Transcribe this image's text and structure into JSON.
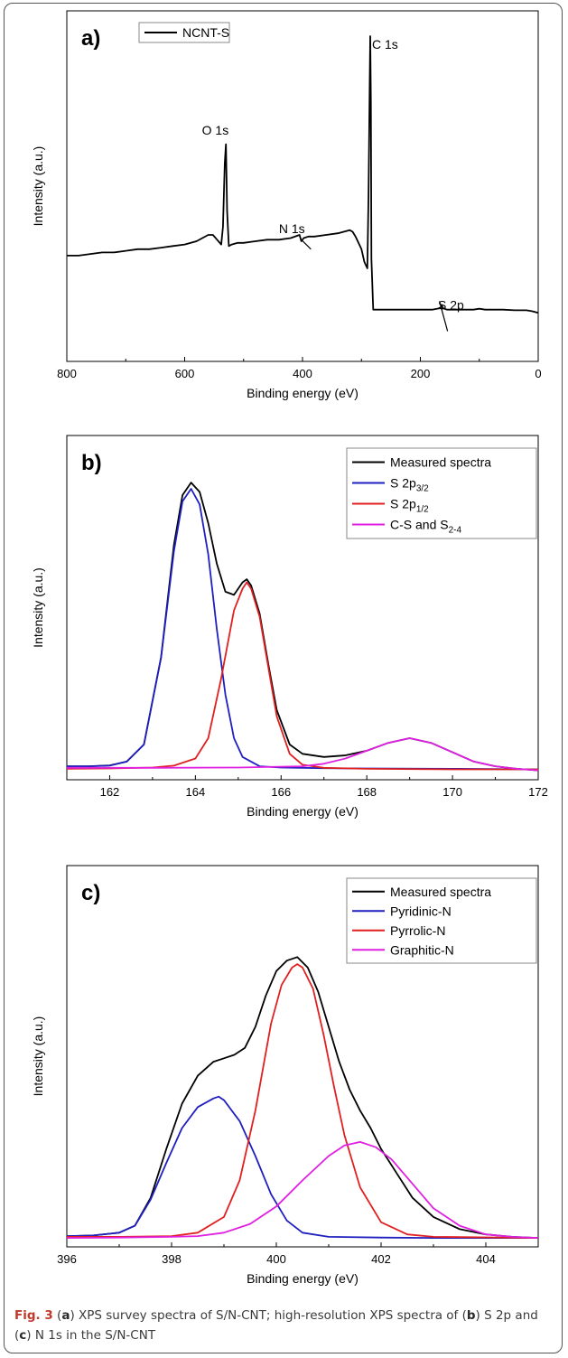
{
  "chart_data": [
    {
      "type": "line",
      "panel_label": "a)",
      "xlabel": "Binding energy (eV)",
      "ylabel": "Intensity (a.u.)",
      "xlim": [
        800,
        0
      ],
      "xticks": [
        800,
        600,
        400,
        200,
        0
      ],
      "ylim": [
        0,
        100
      ],
      "legend": {
        "placement": "top-left",
        "entries": [
          {
            "label": "NCNT-S",
            "color": "#000000"
          }
        ]
      },
      "annotations": [
        {
          "text": "O 1s",
          "x": 548,
          "y": 69
        },
        {
          "text": "N 1s",
          "x": 418,
          "y": 38
        },
        {
          "text": "C 1s",
          "x": 260,
          "y": 96
        },
        {
          "text": "S 2p",
          "x": 148,
          "y": 14
        }
      ],
      "series": [
        {
          "name": "NCNT-S",
          "color": "#000000",
          "x": [
            800,
            780,
            760,
            740,
            720,
            700,
            680,
            660,
            640,
            620,
            600,
            580,
            560,
            552,
            545,
            538,
            535,
            532,
            530,
            528,
            525,
            520,
            510,
            500,
            480,
            460,
            440,
            420,
            405,
            402,
            398,
            390,
            380,
            360,
            340,
            330,
            320,
            315,
            310,
            300,
            295,
            290,
            288,
            286,
            285,
            284,
            283,
            280,
            270,
            250,
            230,
            200,
            180,
            166,
            164,
            162,
            155,
            140,
            120,
            110,
            100,
            90,
            80,
            60,
            40,
            20,
            10,
            0
          ],
          "y": [
            31.0,
            31.0,
            31.5,
            32.0,
            32.0,
            32.5,
            33.0,
            33.0,
            33.5,
            34.0,
            34.5,
            35.5,
            37.5,
            37.5,
            36.0,
            34.5,
            40.0,
            60.0,
            66.0,
            45.0,
            34.0,
            34.5,
            35.0,
            35.0,
            35.5,
            36.0,
            36.0,
            36.5,
            37.5,
            35.5,
            36.5,
            37.0,
            37.0,
            37.5,
            38.0,
            38.5,
            39.0,
            38.5,
            37.0,
            33.0,
            29.0,
            27.0,
            50.0,
            85.0,
            100.0,
            80.0,
            30.0,
            14.0,
            14.0,
            14.0,
            14.0,
            14.0,
            14.0,
            14.5,
            15.5,
            14.5,
            14.0,
            14.0,
            14.0,
            14.0,
            14.3,
            14.0,
            14.0,
            14.0,
            13.8,
            13.8,
            13.5,
            13.0
          ]
        }
      ]
    },
    {
      "type": "line",
      "panel_label": "b)",
      "xlabel": "Binding energy (eV)",
      "ylabel": "Intensity (a.u.)",
      "xlim": [
        161,
        172
      ],
      "xticks": [
        162,
        164,
        166,
        168,
        170,
        172
      ],
      "ylim": [
        0,
        100
      ],
      "legend": {
        "placement": "top-right",
        "entries": [
          {
            "label": "Measured spectra",
            "color": "#000000"
          },
          {
            "label": "S 2p",
            "sub": "3/2",
            "color": "#1f1fbf"
          },
          {
            "label": "S 2p",
            "sub": "1/2",
            "color": "#e02020"
          },
          {
            "label": "C-S and S",
            "sub": "2-4",
            "color": "#e020e0"
          }
        ]
      },
      "series": [
        {
          "name": "Measured spectra",
          "color": "#000000",
          "x": [
            161.0,
            161.5,
            162.0,
            162.4,
            162.8,
            163.2,
            163.5,
            163.7,
            163.9,
            164.1,
            164.3,
            164.5,
            164.7,
            164.9,
            165.1,
            165.2,
            165.3,
            165.5,
            165.7,
            165.9,
            166.2,
            166.5,
            167.0,
            167.5,
            168.0,
            168.5,
            169.0,
            169.5,
            170.0,
            170.5,
            171.0,
            171.5,
            172.0
          ],
          "y": [
            2.0,
            2.0,
            2.3,
            3.5,
            9.0,
            37.0,
            73.0,
            89.0,
            93.0,
            90.0,
            80.0,
            67.0,
            58.0,
            57.0,
            61.0,
            62.0,
            60.0,
            51.0,
            35.0,
            20.0,
            9.0,
            6.0,
            5.0,
            5.5,
            7.0,
            9.5,
            11.0,
            9.5,
            6.5,
            3.5,
            2.0,
            1.2,
            0.7
          ]
        },
        {
          "name": "S 2p3/2",
          "color": "#1f1fbf",
          "x": [
            161.0,
            161.5,
            162.0,
            162.4,
            162.8,
            163.2,
            163.5,
            163.7,
            163.9,
            164.1,
            164.3,
            164.5,
            164.7,
            164.9,
            165.1,
            165.5,
            166.0,
            167.0,
            168.0,
            170.0,
            172.0
          ],
          "y": [
            2.0,
            2.0,
            2.2,
            3.5,
            9.0,
            37.0,
            71.0,
            87.0,
            91.0,
            86.0,
            70.0,
            46.0,
            25.0,
            11.0,
            5.0,
            2.0,
            1.6,
            1.4,
            1.3,
            1.2,
            1.0
          ]
        },
        {
          "name": "S 2p1/2",
          "color": "#e02020",
          "x": [
            161.0,
            162.0,
            163.0,
            163.5,
            164.0,
            164.3,
            164.6,
            164.9,
            165.1,
            165.2,
            165.3,
            165.5,
            165.7,
            165.9,
            166.2,
            166.5,
            167.0,
            168.0,
            170.0,
            172.0
          ],
          "y": [
            1.2,
            1.3,
            1.6,
            2.2,
            4.5,
            11.0,
            30.0,
            52.0,
            59.0,
            61.0,
            59.0,
            50.0,
            34.0,
            18.0,
            6.0,
            2.5,
            1.5,
            1.2,
            1.0,
            1.0
          ]
        },
        {
          "name": "C-S and S2-4",
          "color": "#e020e0",
          "x": [
            161.0,
            163.0,
            165.0,
            166.5,
            167.0,
            167.5,
            168.0,
            168.5,
            169.0,
            169.5,
            170.0,
            170.5,
            171.0,
            171.5,
            172.0
          ],
          "y": [
            1.5,
            1.5,
            1.6,
            2.0,
            2.8,
            4.5,
            7.0,
            9.5,
            11.0,
            9.5,
            6.5,
            3.5,
            2.0,
            1.2,
            0.7
          ]
        }
      ]
    },
    {
      "type": "line",
      "panel_label": "c)",
      "xlabel": "Binding energy (eV)",
      "ylabel": "Intensity (a.u.)",
      "xlim": [
        396,
        405
      ],
      "xticks": [
        396,
        398,
        400,
        402,
        404
      ],
      "ylim": [
        0,
        100
      ],
      "legend": {
        "placement": "top-right",
        "entries": [
          {
            "label": "Measured spectra",
            "color": "#000000"
          },
          {
            "label": "Pyridinic-N",
            "color": "#1f1fbf"
          },
          {
            "label": "Pyrrolic-N",
            "color": "#e02020"
          },
          {
            "label": "Graphitic-N",
            "color": "#e020e0"
          }
        ]
      },
      "series": [
        {
          "name": "Measured spectra",
          "color": "#000000",
          "x": [
            396.0,
            396.5,
            397.0,
            397.3,
            397.6,
            397.9,
            398.2,
            398.5,
            398.8,
            399.0,
            399.2,
            399.4,
            399.6,
            399.8,
            400.0,
            400.2,
            400.4,
            400.6,
            400.8,
            401.0,
            401.2,
            401.4,
            401.6,
            401.8,
            402.0,
            402.3,
            402.6,
            403.0,
            403.5,
            404.0,
            404.5,
            405.0
          ],
          "y": [
            1.0,
            1.2,
            2.0,
            4.0,
            12.0,
            26.0,
            39.0,
            47.0,
            51.0,
            52.0,
            53.0,
            55.0,
            61.0,
            70.0,
            77.0,
            80.0,
            81.0,
            78.0,
            71.0,
            61.0,
            51.0,
            43.0,
            37.0,
            32.0,
            26.0,
            19.0,
            12.0,
            6.5,
            3.0,
            1.5,
            0.8,
            0.5
          ]
        },
        {
          "name": "Pyridinic-N",
          "color": "#1f1fbf",
          "x": [
            396.0,
            396.5,
            397.0,
            397.3,
            397.6,
            397.9,
            398.2,
            398.5,
            398.8,
            398.9,
            399.0,
            399.3,
            399.6,
            399.9,
            400.2,
            400.5,
            401.0,
            402.0,
            403.0,
            405.0
          ],
          "y": [
            1.0,
            1.2,
            2.0,
            4.0,
            11.5,
            22.0,
            32.0,
            38.0,
            40.5,
            41.0,
            40.0,
            34.0,
            24.0,
            13.0,
            5.5,
            2.0,
            0.8,
            0.6,
            0.5,
            0.5
          ]
        },
        {
          "name": "Pyrrolic-N",
          "color": "#e02020",
          "x": [
            396.0,
            397.0,
            398.0,
            398.5,
            399.0,
            399.3,
            399.6,
            399.9,
            400.1,
            400.3,
            400.4,
            400.5,
            400.7,
            400.9,
            401.1,
            401.3,
            401.6,
            402.0,
            402.5,
            403.0,
            405.0
          ],
          "y": [
            0.8,
            0.8,
            1.0,
            2.0,
            6.5,
            17.0,
            37.0,
            62.0,
            73.0,
            78.0,
            79.0,
            78.0,
            72.0,
            59.0,
            44.0,
            30.0,
            15.0,
            5.0,
            1.5,
            0.8,
            0.5
          ]
        },
        {
          "name": "Graphitic-N",
          "color": "#e020e0",
          "x": [
            396.0,
            397.0,
            398.0,
            398.5,
            399.0,
            399.5,
            400.0,
            400.5,
            401.0,
            401.3,
            401.6,
            401.9,
            402.2,
            402.6,
            403.0,
            403.5,
            404.0,
            404.5,
            405.0
          ],
          "y": [
            0.5,
            0.6,
            0.8,
            1.0,
            2.0,
            4.5,
            9.5,
            17.0,
            24.0,
            27.0,
            28.0,
            26.5,
            23.0,
            16.0,
            9.0,
            4.0,
            1.5,
            0.8,
            0.5
          ]
        }
      ]
    }
  ],
  "caption": {
    "label": "Fig. 3",
    "parts": [
      {
        "text": " ("
      },
      {
        "text": "a",
        "bold": true
      },
      {
        "text": ") XPS survey spectra of S/N-CNT; high-resolution XPS spectra of ("
      },
      {
        "text": "b",
        "bold": true
      },
      {
        "text": ") S 2p and ("
      },
      {
        "text": "c",
        "bold": true
      },
      {
        "text": ") N 1s in the S/N-CNT"
      }
    ]
  }
}
